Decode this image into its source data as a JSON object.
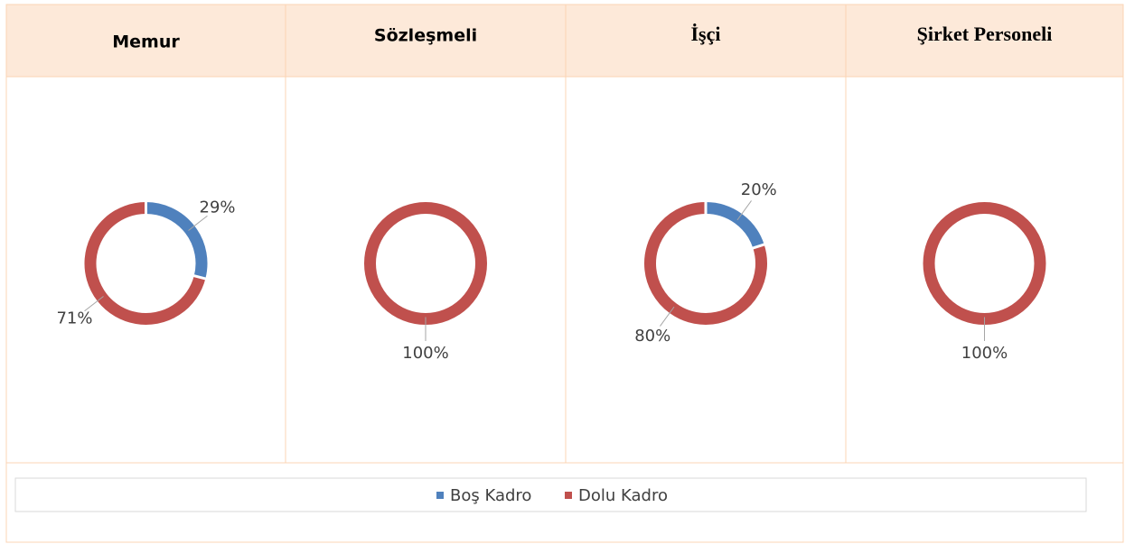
{
  "chart_data": [
    {
      "type": "donut",
      "title": "Memur",
      "categories": [
        "Boş Kadro",
        "Dolu Kadro"
      ],
      "values": [
        29,
        71
      ],
      "value_labels": [
        "29%",
        "71%"
      ],
      "colors": [
        "#4f81bd",
        "#c0504d"
      ]
    },
    {
      "type": "donut",
      "title": "Sözleşmeli",
      "categories": [
        "Dolu Kadro"
      ],
      "values": [
        100
      ],
      "value_labels": [
        "100%"
      ],
      "colors": [
        "#c0504d"
      ]
    },
    {
      "type": "donut",
      "title": "İşçi",
      "categories": [
        "Boş Kadro",
        "Dolu Kadro"
      ],
      "values": [
        20,
        80
      ],
      "value_labels": [
        "20%",
        "80%"
      ],
      "colors": [
        "#4f81bd",
        "#c0504d"
      ]
    },
    {
      "type": "donut",
      "title": "Şirket Personeli",
      "categories": [
        "Dolu Kadro"
      ],
      "values": [
        100
      ],
      "value_labels": [
        "100%"
      ],
      "colors": [
        "#c0504d"
      ]
    }
  ]
}
